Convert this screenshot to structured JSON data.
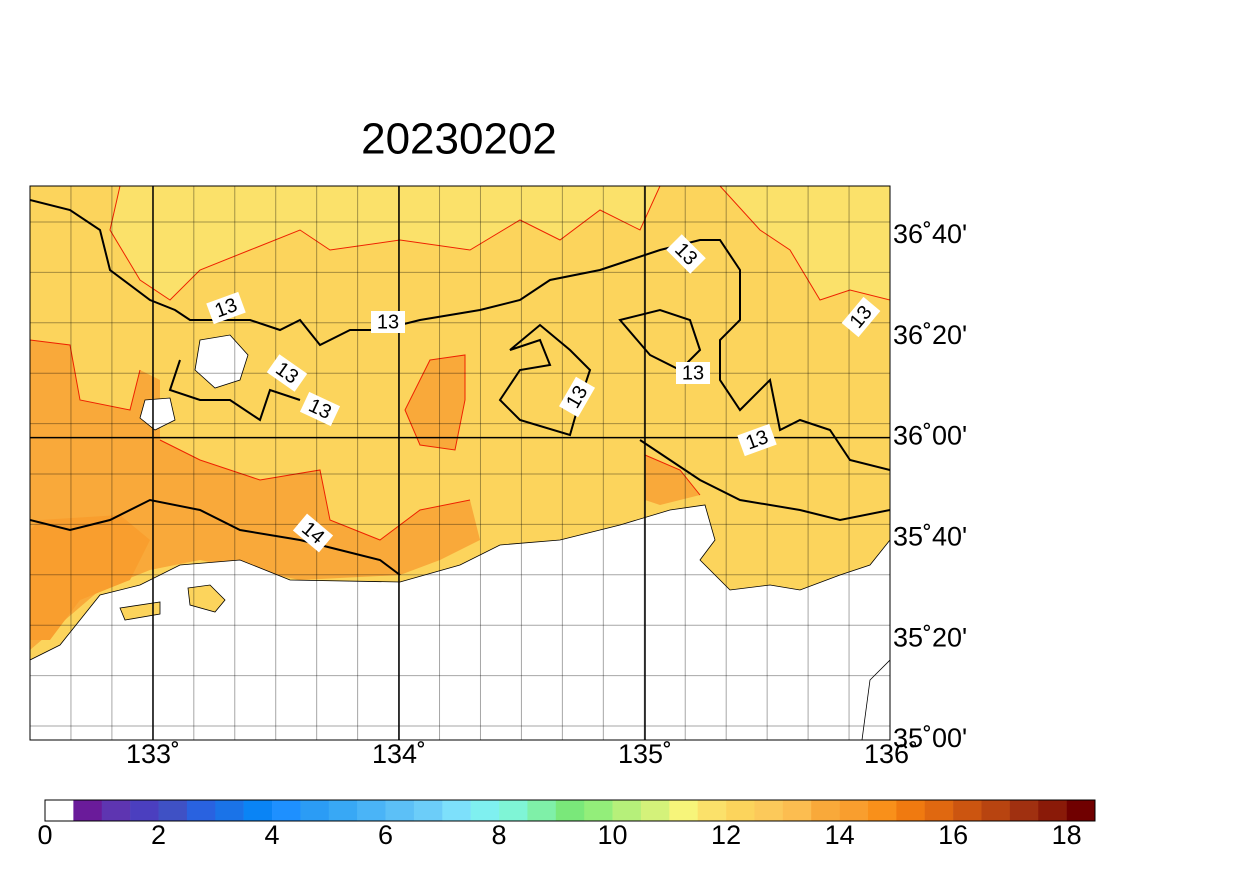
{
  "title": "20230202",
  "lon_labels": [
    "133˚",
    "134˚",
    "135˚",
    "136˚"
  ],
  "lat_labels": [
    "36˚40'",
    "36˚20'",
    "36˚00'",
    "35˚40'",
    "35˚20'",
    "35˚00'"
  ],
  "contour_labels": [
    "13",
    "13",
    "13",
    "13",
    "13",
    "13",
    "13",
    "13",
    "13",
    "14"
  ],
  "colorbar": {
    "lim": [
      0,
      18.5
    ],
    "ticks": [
      0,
      2,
      4,
      6,
      8,
      10,
      12,
      14,
      16,
      18
    ],
    "colors": [
      "#ffffff",
      "#6a1b9a",
      "#5e35b1",
      "#4b3fbf",
      "#3f51c5",
      "#2962e0",
      "#1a73e8",
      "#0a84f5",
      "#1e90ff",
      "#2b9cf5",
      "#38a8f5",
      "#4ab4f7",
      "#5cc0f7",
      "#6ccdf9",
      "#7de0fb",
      "#7ff0f0",
      "#7ff5d6",
      "#7ff0a8",
      "#7ae87a",
      "#93ee7a",
      "#b6f07a",
      "#d4f27a",
      "#f7f57a",
      "#fbe16a",
      "#fcd45c",
      "#fcc95a",
      "#fcbd50",
      "#f9a93a",
      "#f99e2e",
      "#f9901a",
      "#f07a10",
      "#e06810",
      "#cc5510",
      "#b84410",
      "#a03010",
      "#8a1a08",
      "#700000"
    ]
  }
}
